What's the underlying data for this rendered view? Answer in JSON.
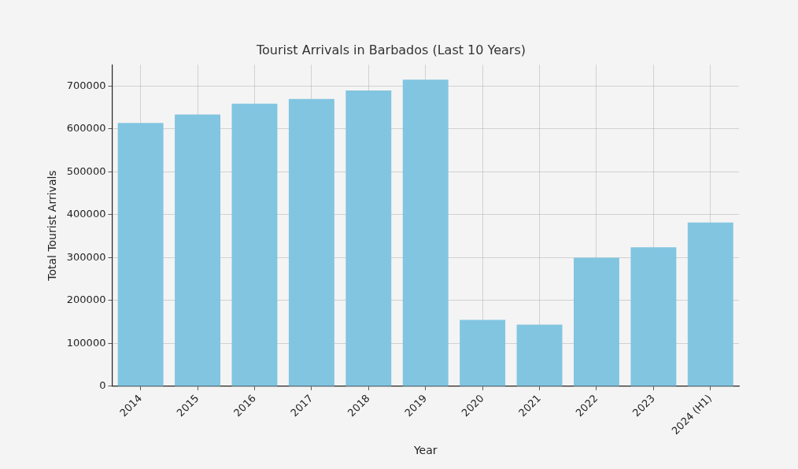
{
  "chart_data": {
    "type": "bar",
    "title": "Tourist Arrivals in Barbados (Last 10 Years)",
    "x_label": "Year",
    "y_label": "Total Tourist Arrivals",
    "categories": [
      "2014",
      "2015",
      "2016",
      "2017",
      "2018",
      "2019",
      "2020",
      "2021",
      "2022",
      "2023",
      "2024 (H1)"
    ],
    "values": [
      614000,
      634000,
      659000,
      670000,
      690000,
      715000,
      155000,
      144000,
      300000,
      324000,
      382000
    ],
    "color": "#82c5e1",
    "ylim": [
      0,
      750000
    ],
    "yticks": [
      0,
      100000,
      200000,
      300000,
      400000,
      500000,
      600000,
      700000
    ],
    "grid": true
  }
}
